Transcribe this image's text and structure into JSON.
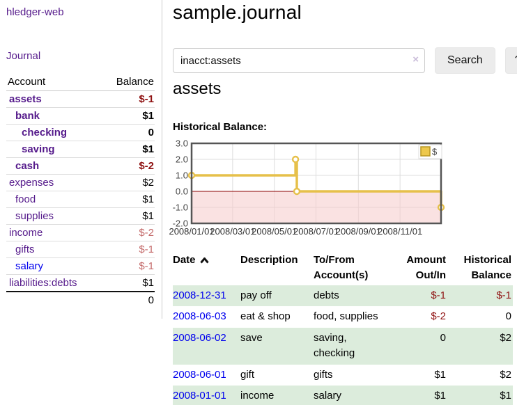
{
  "app": {
    "title": "hledger-web"
  },
  "sidebar": {
    "journal_label": "Journal",
    "accounts_table": {
      "headers": {
        "account": "Account",
        "balance": "Balance"
      },
      "rows": [
        {
          "name": "assets",
          "balance": "$-1",
          "depth": 1,
          "bold": true,
          "link_style": "visited",
          "balance_style": "negative-strong"
        },
        {
          "name": "bank",
          "balance": "$1",
          "depth": 2,
          "bold": true,
          "link_style": "visited",
          "balance_style": "normal"
        },
        {
          "name": "checking",
          "balance": "0",
          "depth": 3,
          "bold": true,
          "link_style": "visited",
          "balance_style": "normal"
        },
        {
          "name": "saving",
          "balance": "$1",
          "depth": 3,
          "bold": true,
          "link_style": "visited",
          "balance_style": "normal"
        },
        {
          "name": "cash",
          "balance": "$-2",
          "depth": 2,
          "bold": true,
          "link_style": "visited",
          "balance_style": "negative-strong"
        },
        {
          "name": "expenses",
          "balance": "$2",
          "depth": 1,
          "bold": false,
          "link_style": "visited",
          "balance_style": "normal"
        },
        {
          "name": "food",
          "balance": "$1",
          "depth": 2,
          "bold": false,
          "link_style": "visited",
          "balance_style": "normal"
        },
        {
          "name": "supplies",
          "balance": "$1",
          "depth": 2,
          "bold": false,
          "link_style": "visited",
          "balance_style": "normal"
        },
        {
          "name": "income",
          "balance": "$-2",
          "depth": 1,
          "bold": false,
          "link_style": "visited",
          "balance_style": "negative-muted"
        },
        {
          "name": "gifts",
          "balance": "$-1",
          "depth": 2,
          "bold": false,
          "link_style": "visited",
          "balance_style": "negative-muted"
        },
        {
          "name": "salary",
          "balance": "$-1",
          "depth": 2,
          "bold": false,
          "link_style": "unvisited",
          "balance_style": "negative-muted"
        },
        {
          "name": "liabilities:debts",
          "balance": "$1",
          "depth": 1,
          "bold": false,
          "link_style": "visited",
          "balance_style": "normal"
        }
      ],
      "total": "0"
    }
  },
  "main": {
    "title": "sample.journal",
    "search": {
      "value": "inacct:assets",
      "clear_icon": "×",
      "button_label": "Search",
      "help_label": "?"
    },
    "account_heading": "assets",
    "chart_heading": "Historical Balance:"
  },
  "chart_data": {
    "type": "line",
    "step": true,
    "title": "Historical Balance:",
    "series": [
      {
        "name": "$",
        "color": "#E6C04A",
        "points": [
          [
            "2008-01-01",
            1
          ],
          [
            "2008-06-01",
            2
          ],
          [
            "2008-06-03",
            0
          ],
          [
            "2008-12-31",
            -1
          ]
        ]
      }
    ],
    "x_range": [
      "2008-01-01",
      "2008-12-31"
    ],
    "ylim": [
      -2,
      3
    ],
    "y_ticks": [
      3.0,
      2.0,
      1.0,
      0.0,
      -1.0,
      -2.0
    ],
    "x_ticks": [
      "2008/01/01",
      "2008/03/01",
      "2008/05/01",
      "2008/07/01",
      "2008/09/01",
      "2008/11/01"
    ],
    "grid": true,
    "legend_position": "top-right",
    "colors": {
      "line": "#E6C04A",
      "marker_fill": "#ffffff",
      "legend_square": "#EDC84C",
      "legend_border": "#B99722",
      "negative_region_fill": "#F6CACA",
      "zero_line": "#8B0000",
      "plot_border": "#555555",
      "gridline": "#dddddd",
      "tick_label": "#444444"
    }
  },
  "register": {
    "headers": [
      {
        "line1": "Date",
        "line2": "",
        "sort_icon": "caret-up-icon"
      },
      {
        "line1": "Description",
        "line2": ""
      },
      {
        "line1": "To/From",
        "line2": "Account(s)"
      },
      {
        "line1": "Amount",
        "line2": "Out/In"
      },
      {
        "line1": "Historical",
        "line2": "Balance"
      }
    ],
    "rows": [
      {
        "date": "2008-12-31",
        "description": "pay off",
        "accounts": "debts",
        "amount": "$-1",
        "amount_style": "negative",
        "balance": "$-1",
        "balance_style": "negative"
      },
      {
        "date": "2008-06-03",
        "description": "eat & shop",
        "accounts": "food, supplies",
        "amount": "$-2",
        "amount_style": "negative",
        "balance": "0",
        "balance_style": "normal"
      },
      {
        "date": "2008-06-02",
        "description": "save",
        "accounts": "saving, checking",
        "amount": "0",
        "amount_style": "normal",
        "balance": "$2",
        "balance_style": "normal"
      },
      {
        "date": "2008-06-01",
        "description": "gift",
        "accounts": "gifts",
        "amount": "$1",
        "amount_style": "normal",
        "balance": "$2",
        "balance_style": "normal"
      },
      {
        "date": "2008-01-01",
        "description": "income",
        "accounts": "salary",
        "amount": "$1",
        "amount_style": "normal",
        "balance": "$1",
        "balance_style": "normal"
      }
    ]
  },
  "colors": {
    "visited_link": "#551A8B",
    "unvisited_link": "#0000EE",
    "negative_strong": "#8F1212",
    "negative_muted": "#C46A6A",
    "row_highlight_green": "#DCECDC",
    "button_bg": "#ECECEC"
  }
}
